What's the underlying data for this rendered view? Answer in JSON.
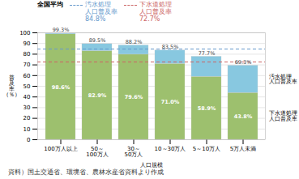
{
  "chart_data": {
    "type": "bar",
    "stacked": true,
    "data_labels": true,
    "grid": true,
    "xlabel": "人口規模",
    "ylabel": "普\n及\n率\n（％）",
    "source": "資料）国土交通省、環境省、農林水産省資料より作成",
    "categories": [
      "100万人以上",
      "50～\n100万人",
      "30～\n50万人",
      "10～30万人",
      "5～10万人",
      "5万人未満"
    ],
    "series": [
      {
        "name": "下水道処理\n人口普及率",
        "color": "#9dc06e",
        "values": [
          98.6,
          82.9,
          79.6,
          71.0,
          58.9,
          43.8
        ],
        "value_labels": [
          "98.6%",
          "82.9%",
          "79.6%",
          "71.0%",
          "58.9%",
          "43.8%"
        ]
      },
      {
        "name": "汚水処理\n人口普及率",
        "color": "#88c8e0",
        "values": [
          0.7,
          6.6,
          8.6,
          12.5,
          18.8,
          25.5
        ]
      }
    ],
    "totals": [
      99.3,
      89.5,
      88.2,
      83.5,
      77.7,
      69.3
    ],
    "total_labels": [
      "99.3%",
      "89.5%",
      "88.2%",
      "83.5%",
      "77.7%",
      "69.3%"
    ],
    "reference_title": "全国平均",
    "reference_lines": [
      {
        "value": 84.8,
        "color": "#6699cc",
        "label": "汚水処理\n人口普及率\n84.8%"
      },
      {
        "value": 72.7,
        "color": "#cc6666",
        "label": "下水道処理\n人口普及率\n72.7%"
      }
    ],
    "ylim": [
      0,
      100
    ],
    "yticks": [
      0,
      10,
      20,
      30,
      40,
      50,
      60,
      70,
      80,
      90,
      100
    ]
  }
}
